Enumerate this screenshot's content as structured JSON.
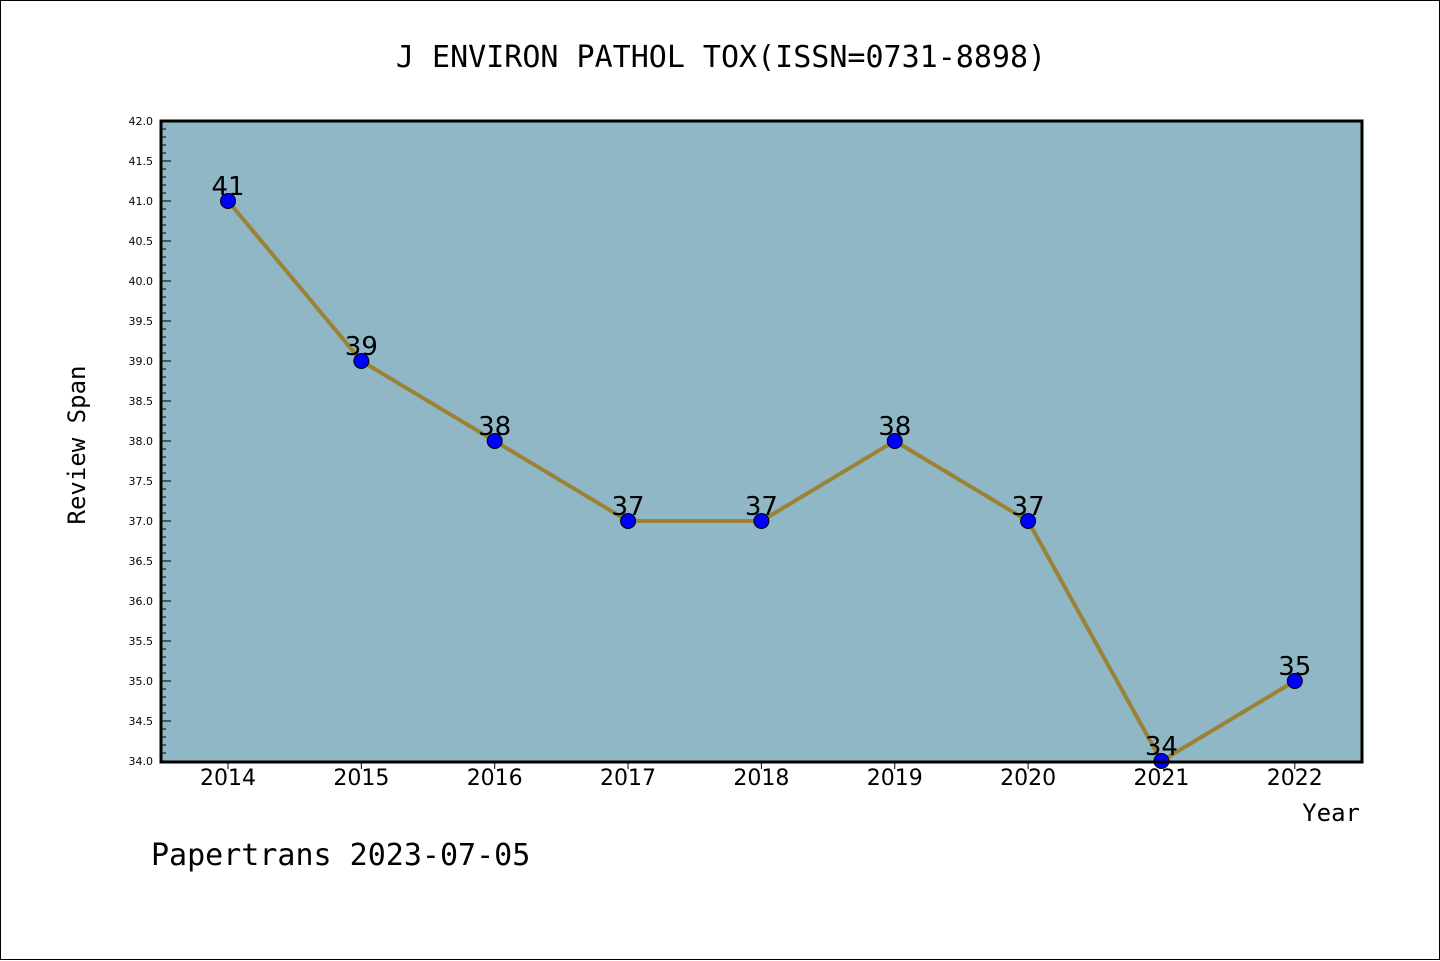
{
  "chart_data": {
    "type": "line",
    "title": "J ENVIRON PATHOL TOX(ISSN=0731-8898)",
    "xlabel": "Year",
    "ylabel": "Review Span",
    "x": [
      "2014",
      "2015",
      "2016",
      "2017",
      "2018",
      "2019",
      "2020",
      "2021",
      "2022"
    ],
    "series": [
      {
        "values": [
          41,
          39,
          38,
          37,
          37,
          38,
          37,
          34,
          35
        ]
      }
    ],
    "data_labels": [
      "41",
      "39",
      "38",
      "37",
      "37",
      "38",
      "37",
      "34",
      "35"
    ],
    "ylim": [
      34.0,
      42.0
    ],
    "yticks": [
      "34.0",
      "34.5",
      "35.0",
      "35.5",
      "36.0",
      "36.5",
      "37.0",
      "37.5",
      "38.0",
      "38.5",
      "39.0",
      "39.5",
      "40.0",
      "40.5",
      "41.0",
      "41.5",
      "42.0"
    ],
    "grid": false,
    "colors": {
      "plot_background": "#8fb7c5",
      "line": "#9a8236",
      "marker": "#0000ff"
    }
  },
  "footer": "Papertrans 2023-07-05"
}
